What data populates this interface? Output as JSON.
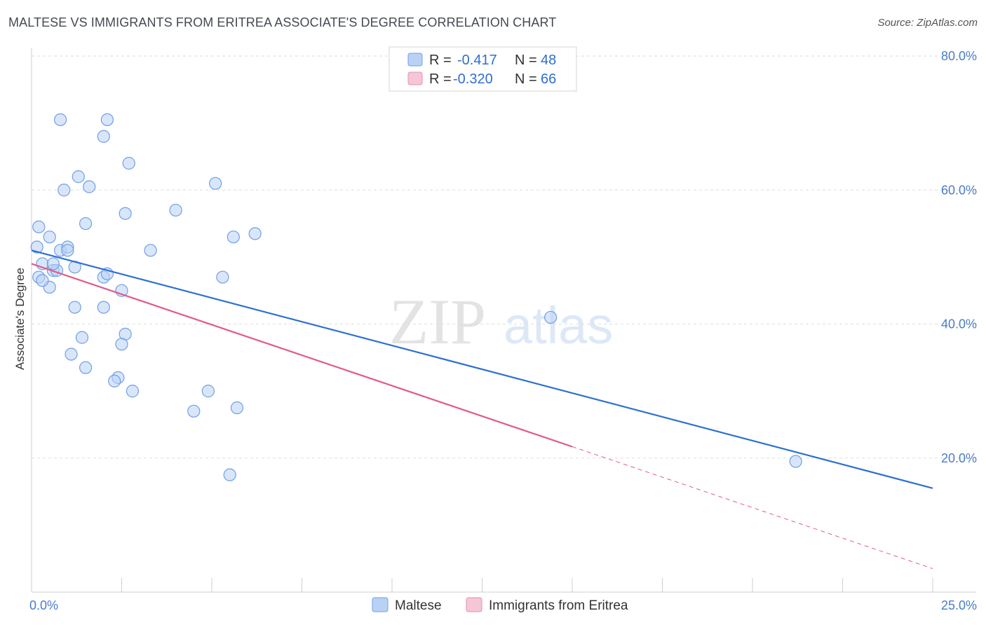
{
  "title": "MALTESE VS IMMIGRANTS FROM ERITREA ASSOCIATE'S DEGREE CORRELATION CHART",
  "source": "Source: ZipAtlas.com",
  "watermark": {
    "zip": "ZIP",
    "atlas": "atlas"
  },
  "legend": {
    "r_label": "R =",
    "n_label": "N =",
    "rows": [
      {
        "r": "-0.417",
        "n": "48"
      },
      {
        "r": "-0.320",
        "n": "66"
      }
    ]
  },
  "chart_data": {
    "type": "scatter",
    "xlabel": "",
    "ylabel": "Associate's Degree",
    "xlim": [
      0,
      25
    ],
    "ylim": [
      0,
      80
    ],
    "x_tick_labels": [
      "0.0%",
      "25.0%"
    ],
    "y_ticks": [
      20,
      40,
      60,
      80
    ],
    "y_tick_labels": [
      "20.0%",
      "40.0%",
      "60.0%",
      "80.0%"
    ],
    "grid": "horizontal dashed",
    "legend_position": "bottom",
    "series": [
      {
        "name": "Maltese",
        "color": "#6f9fe6",
        "fill": "#b9d1f5",
        "line_color": "#2e6fd1",
        "trend": {
          "x": [
            0,
            25
          ],
          "y": [
            51.0,
            15.5
          ],
          "dashed_from": null
        },
        "points": [
          [
            0.2,
            54.5
          ],
          [
            0.15,
            51.5
          ],
          [
            0.5,
            53
          ],
          [
            0.3,
            49
          ],
          [
            0.6,
            48
          ],
          [
            0.7,
            48
          ],
          [
            0.8,
            51
          ],
          [
            1.0,
            51.5
          ],
          [
            0.2,
            47
          ],
          [
            0.5,
            45.5
          ],
          [
            1.2,
            48.5
          ],
          [
            1.5,
            55
          ],
          [
            2.0,
            47
          ],
          [
            2.5,
            45
          ],
          [
            2.6,
            56.5
          ],
          [
            3.3,
            51
          ],
          [
            4.0,
            57
          ],
          [
            1.6,
            60.5
          ],
          [
            1.3,
            62
          ],
          [
            0.9,
            60
          ],
          [
            2.7,
            64
          ],
          [
            2.0,
            68
          ],
          [
            2.1,
            70.5
          ],
          [
            0.8,
            70.5
          ],
          [
            5.1,
            61
          ],
          [
            5.6,
            53
          ],
          [
            6.2,
            53.5
          ],
          [
            5.3,
            47
          ],
          [
            2.0,
            42.5
          ],
          [
            1.2,
            42.5
          ],
          [
            1.4,
            38
          ],
          [
            2.6,
            38.5
          ],
          [
            2.5,
            37
          ],
          [
            1.1,
            35.5
          ],
          [
            1.5,
            33.5
          ],
          [
            2.4,
            32
          ],
          [
            2.3,
            31.5
          ],
          [
            2.8,
            30
          ],
          [
            4.9,
            30
          ],
          [
            4.5,
            27
          ],
          [
            5.7,
            27.5
          ],
          [
            5.5,
            17.5
          ],
          [
            14.4,
            41
          ],
          [
            21.2,
            19.5
          ],
          [
            0.3,
            46.5
          ],
          [
            0.6,
            49
          ],
          [
            1.0,
            51
          ],
          [
            2.1,
            47.5
          ]
        ]
      },
      {
        "name": "Immigrants from Eritrea",
        "color": "#e98db0",
        "fill": "#f5c6d6",
        "line_color": "#e05c8c",
        "trend": {
          "x": [
            0,
            25
          ],
          "y": [
            49.0,
            3.5
          ],
          "dashed_from": 15
        }
      }
    ]
  }
}
